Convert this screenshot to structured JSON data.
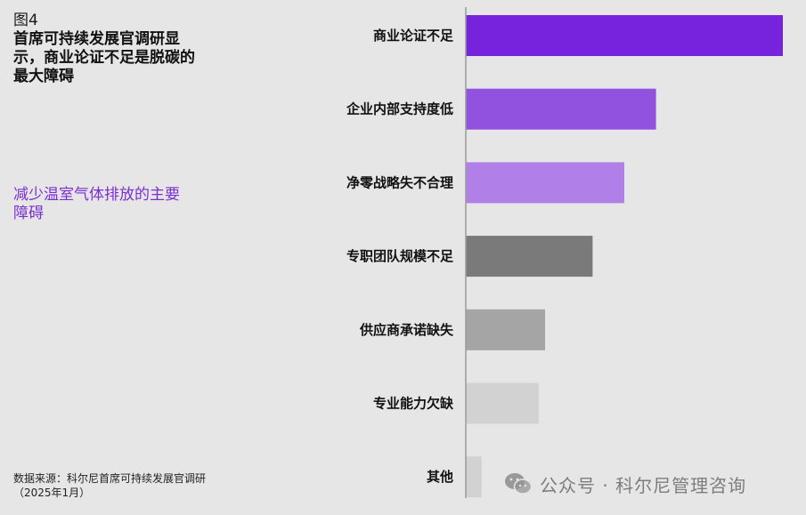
{
  "figure": {
    "label": "图4",
    "headline": "首席可持续发展官调研显示，商业论证不足是脱碳的最大障碍",
    "subhead": "减少温室气体排放的主要障碍",
    "source": "数据来源：科尔尼首席可持续发展官调研（2025年1月）"
  },
  "watermark": {
    "text": "公众号 · 科尔尼管理咨询",
    "icon": "wechat-icon"
  },
  "chart_data": {
    "type": "bar",
    "orientation": "horizontal",
    "categories": [
      "商业论证不足",
      "企业内部支持度低",
      "净零战略失不合理",
      "专职团队规模不足",
      "供应商承诺缺失",
      "专业能力欠缺",
      "其他"
    ],
    "values": [
      100,
      60,
      50,
      40,
      25,
      23,
      5
    ],
    "colors": [
      "#7722dd",
      "#9152e0",
      "#b07fe8",
      "#7a7a7a",
      "#a5a5a5",
      "#d2d2d2",
      "#d2d2d2"
    ],
    "title": "减少温室气体排放的主要障碍",
    "xlabel": "",
    "ylabel": "",
    "xlim": [
      0,
      100
    ],
    "grid": false,
    "legend": "none",
    "tick_labels_shown": false
  }
}
